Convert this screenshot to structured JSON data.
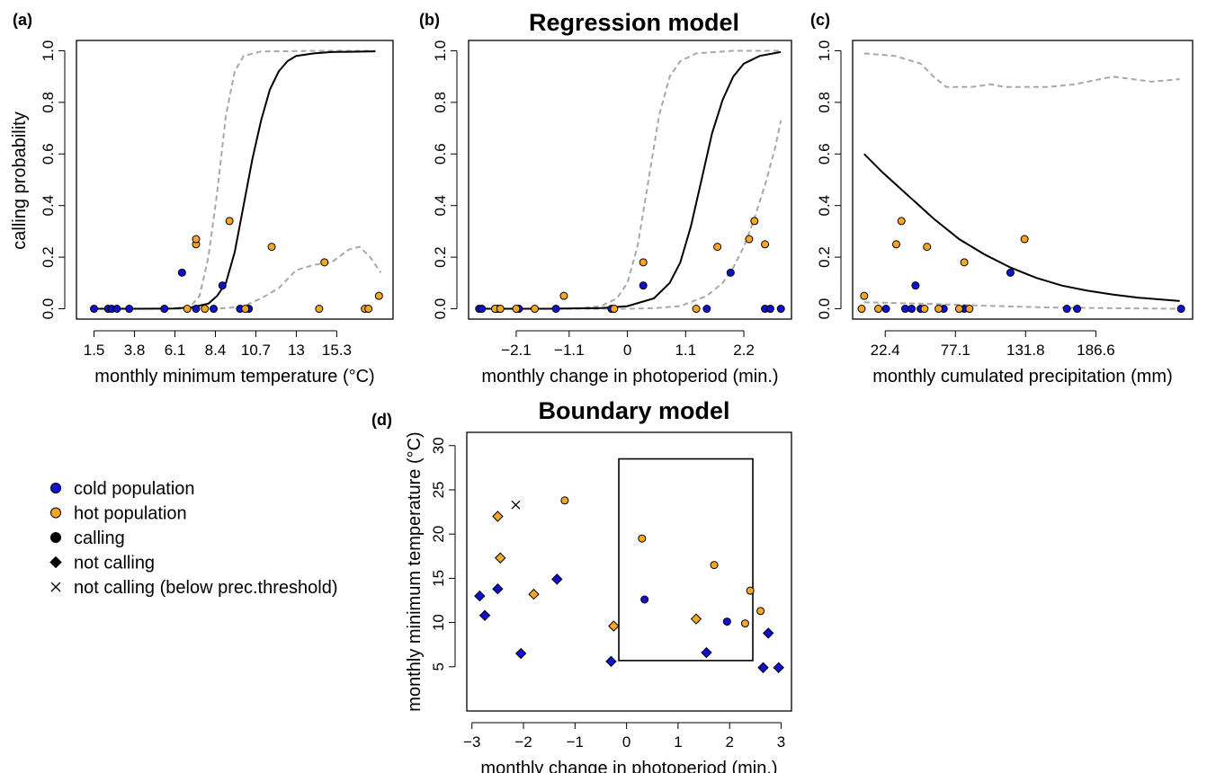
{
  "figure": {
    "titles": {
      "regression": "Regression model",
      "boundary": "Boundary model"
    },
    "panel_labels": {
      "a": "(a)",
      "b": "(b)",
      "c": "(c)",
      "d": "(d)"
    },
    "shared_ylabel": "calling probability"
  },
  "colors": {
    "cold": "#1010d0",
    "hot": "#f5a623",
    "fit": "#000000",
    "ci": "#a8a8a8"
  },
  "legend": {
    "items": [
      {
        "label": "cold population",
        "symbol": "circle",
        "color": "#1010d0"
      },
      {
        "label": "hot population",
        "symbol": "circle",
        "color": "#f5a623"
      },
      {
        "label": "calling",
        "symbol": "circle",
        "color": "#000000"
      },
      {
        "label": "not calling",
        "symbol": "diamond",
        "color": "#000000"
      },
      {
        "label": "not calling (below prec.threshold)",
        "symbol": "cross",
        "color": "#000000"
      }
    ]
  },
  "chart_data": [
    {
      "panel": "a",
      "type": "scatter",
      "xlabel": "monthly minimum temperature (°C)",
      "ylabel": "calling probability",
      "xlim": [
        0.5,
        18.5
      ],
      "ylim": [
        -0.04,
        1.04
      ],
      "xticks": [
        1.5,
        3.8,
        6.1,
        8.4,
        10.7,
        13,
        15.3
      ],
      "xtick_labels": [
        "1.5",
        "3.8",
        "6.1",
        "8.4",
        "10.7",
        "13",
        "15.3"
      ],
      "yticks": [
        0,
        0.2,
        0.4,
        0.6,
        0.8,
        1
      ],
      "ytick_labels": [
        "0.0",
        "0.2",
        "0.4",
        "0.6",
        "0.8",
        "1.0"
      ],
      "points": [
        {
          "x": 1.5,
          "y": 0,
          "group": "cold"
        },
        {
          "x": 2.3,
          "y": 0,
          "group": "cold"
        },
        {
          "x": 2.5,
          "y": 0,
          "group": "cold"
        },
        {
          "x": 2.8,
          "y": 0,
          "group": "cold"
        },
        {
          "x": 3.5,
          "y": 0,
          "group": "cold"
        },
        {
          "x": 5.5,
          "y": 0,
          "group": "cold"
        },
        {
          "x": 6.5,
          "y": 0.14,
          "group": "cold"
        },
        {
          "x": 7.3,
          "y": 0,
          "group": "cold"
        },
        {
          "x": 8.3,
          "y": 0,
          "group": "cold"
        },
        {
          "x": 8.8,
          "y": 0.09,
          "group": "cold"
        },
        {
          "x": 9.8,
          "y": 0,
          "group": "cold"
        },
        {
          "x": 10.3,
          "y": 0,
          "group": "cold"
        },
        {
          "x": 6.8,
          "y": 0,
          "group": "hot"
        },
        {
          "x": 7.8,
          "y": 0,
          "group": "hot"
        },
        {
          "x": 7.3,
          "y": 0.25,
          "group": "hot"
        },
        {
          "x": 7.3,
          "y": 0.27,
          "group": "hot"
        },
        {
          "x": 9.2,
          "y": 0.34,
          "group": "hot"
        },
        {
          "x": 10.1,
          "y": 0,
          "group": "hot"
        },
        {
          "x": 11.6,
          "y": 0.24,
          "group": "hot"
        },
        {
          "x": 14.3,
          "y": 0,
          "group": "hot"
        },
        {
          "x": 14.6,
          "y": 0.18,
          "group": "hot"
        },
        {
          "x": 16.9,
          "y": 0,
          "group": "hot"
        },
        {
          "x": 17.1,
          "y": 0,
          "group": "hot"
        },
        {
          "x": 17.7,
          "y": 0.05,
          "group": "hot"
        }
      ],
      "fit": [
        [
          1.5,
          0
        ],
        [
          4,
          0
        ],
        [
          6,
          0.001
        ],
        [
          7,
          0.005
        ],
        [
          8,
          0.02
        ],
        [
          8.5,
          0.05
        ],
        [
          9,
          0.1
        ],
        [
          9.5,
          0.22
        ],
        [
          10,
          0.4
        ],
        [
          10.5,
          0.58
        ],
        [
          11,
          0.73
        ],
        [
          11.5,
          0.85
        ],
        [
          12,
          0.92
        ],
        [
          12.5,
          0.96
        ],
        [
          13,
          0.98
        ],
        [
          14,
          0.99
        ],
        [
          15,
          0.995
        ],
        [
          17.5,
          0.998
        ]
      ],
      "ci_upper": [
        [
          1.5,
          0
        ],
        [
          6,
          0
        ],
        [
          7,
          0.01
        ],
        [
          7.5,
          0.05
        ],
        [
          8,
          0.2
        ],
        [
          8.5,
          0.45
        ],
        [
          9,
          0.75
        ],
        [
          9.5,
          0.92
        ],
        [
          10,
          0.98
        ],
        [
          11,
          0.997
        ],
        [
          14,
          1
        ],
        [
          17.5,
          1
        ]
      ],
      "ci_lower": [
        [
          1.5,
          0
        ],
        [
          8,
          0
        ],
        [
          9,
          0.002
        ],
        [
          10,
          0.01
        ],
        [
          11,
          0.04
        ],
        [
          12,
          0.08
        ],
        [
          13,
          0.15
        ],
        [
          14,
          0.17
        ],
        [
          15,
          0.18
        ],
        [
          16,
          0.23
        ],
        [
          16.6,
          0.24
        ],
        [
          17.2,
          0.2
        ],
        [
          17.8,
          0.14
        ]
      ]
    },
    {
      "panel": "b",
      "type": "scatter",
      "xlabel": "monthly change in photoperiod (min.)",
      "xlim": [
        -3.0,
        3.1
      ],
      "ylim": [
        -0.04,
        1.04
      ],
      "xticks": [
        -2.1,
        -1.1,
        0,
        1.1,
        2.2
      ],
      "xtick_labels": [
        "−2.1",
        "−1.1",
        "0",
        "1.1",
        "2.2"
      ],
      "yticks": [
        0,
        0.2,
        0.4,
        0.6,
        0.8,
        1
      ],
      "ytick_labels": [
        "0.0",
        "0.2",
        "0.4",
        "0.6",
        "0.8",
        "1.0"
      ],
      "points": [
        {
          "x": -2.8,
          "y": 0,
          "group": "cold"
        },
        {
          "x": -2.75,
          "y": 0,
          "group": "cold"
        },
        {
          "x": -2.45,
          "y": 0,
          "group": "cold"
        },
        {
          "x": -2.05,
          "y": 0,
          "group": "cold"
        },
        {
          "x": -1.35,
          "y": 0,
          "group": "cold"
        },
        {
          "x": -0.3,
          "y": 0,
          "group": "cold"
        },
        {
          "x": 0.3,
          "y": 0.09,
          "group": "cold"
        },
        {
          "x": 1.5,
          "y": 0,
          "group": "cold"
        },
        {
          "x": 1.95,
          "y": 0.14,
          "group": "cold"
        },
        {
          "x": 2.6,
          "y": 0,
          "group": "cold"
        },
        {
          "x": 2.7,
          "y": 0,
          "group": "cold"
        },
        {
          "x": 2.9,
          "y": 0,
          "group": "cold"
        },
        {
          "x": -2.5,
          "y": 0,
          "group": "hot"
        },
        {
          "x": -2.4,
          "y": 0,
          "group": "hot"
        },
        {
          "x": -2.1,
          "y": 0,
          "group": "hot"
        },
        {
          "x": -1.75,
          "y": 0,
          "group": "hot"
        },
        {
          "x": -1.2,
          "y": 0.05,
          "group": "hot"
        },
        {
          "x": -0.25,
          "y": 0,
          "group": "hot"
        },
        {
          "x": 0.3,
          "y": 0.18,
          "group": "hot"
        },
        {
          "x": 1.3,
          "y": 0,
          "group": "hot"
        },
        {
          "x": 1.7,
          "y": 0.24,
          "group": "hot"
        },
        {
          "x": 2.3,
          "y": 0.27,
          "group": "hot"
        },
        {
          "x": 2.4,
          "y": 0.34,
          "group": "hot"
        },
        {
          "x": 2.6,
          "y": 0.25,
          "group": "hot"
        }
      ],
      "fit": [
        [
          -2.85,
          0
        ],
        [
          -1.5,
          0
        ],
        [
          -0.5,
          0.003
        ],
        [
          0,
          0.01
        ],
        [
          0.5,
          0.04
        ],
        [
          0.8,
          0.1
        ],
        [
          1.0,
          0.18
        ],
        [
          1.2,
          0.32
        ],
        [
          1.4,
          0.5
        ],
        [
          1.6,
          0.68
        ],
        [
          1.8,
          0.81
        ],
        [
          2.0,
          0.9
        ],
        [
          2.2,
          0.95
        ],
        [
          2.5,
          0.98
        ],
        [
          2.9,
          0.995
        ]
      ],
      "ci_upper": [
        [
          -2.85,
          0
        ],
        [
          -1,
          0
        ],
        [
          -0.5,
          0.01
        ],
        [
          -0.2,
          0.04
        ],
        [
          0,
          0.1
        ],
        [
          0.2,
          0.25
        ],
        [
          0.4,
          0.5
        ],
        [
          0.6,
          0.75
        ],
        [
          0.8,
          0.9
        ],
        [
          1.0,
          0.96
        ],
        [
          1.3,
          0.99
        ],
        [
          2,
          1
        ],
        [
          2.9,
          1
        ]
      ],
      "ci_lower": [
        [
          -2.85,
          0
        ],
        [
          0,
          0
        ],
        [
          0.5,
          0.002
        ],
        [
          1.0,
          0.01
        ],
        [
          1.5,
          0.05
        ],
        [
          1.8,
          0.1
        ],
        [
          2.0,
          0.16
        ],
        [
          2.2,
          0.24
        ],
        [
          2.4,
          0.35
        ],
        [
          2.6,
          0.48
        ],
        [
          2.8,
          0.63
        ],
        [
          2.9,
          0.73
        ]
      ]
    },
    {
      "panel": "c",
      "type": "scatter",
      "xlabel": "monthly cumulated precipitation (mm)",
      "xlim": [
        -3,
        262
      ],
      "ylim": [
        -0.04,
        1.04
      ],
      "xticks": [
        22.4,
        77.1,
        131.8,
        186.6
      ],
      "xtick_labels": [
        "22.4",
        "77.1",
        "131.8",
        "186.6"
      ],
      "yticks": [
        0,
        0.2,
        0.4,
        0.6,
        0.8,
        1
      ],
      "ytick_labels": [
        "0.0",
        "0.2",
        "0.4",
        "0.6",
        "0.8",
        "1.0"
      ],
      "points": [
        {
          "x": 23,
          "y": 0,
          "group": "cold"
        },
        {
          "x": 38,
          "y": 0,
          "group": "cold"
        },
        {
          "x": 43,
          "y": 0,
          "group": "cold"
        },
        {
          "x": 46,
          "y": 0.09,
          "group": "cold"
        },
        {
          "x": 50,
          "y": 0,
          "group": "cold"
        },
        {
          "x": 68,
          "y": 0,
          "group": "cold"
        },
        {
          "x": 84,
          "y": 0,
          "group": "cold"
        },
        {
          "x": 120,
          "y": 0.14,
          "group": "cold"
        },
        {
          "x": 164,
          "y": 0,
          "group": "cold"
        },
        {
          "x": 172,
          "y": 0,
          "group": "cold"
        },
        {
          "x": 253,
          "y": 0,
          "group": "cold"
        },
        {
          "x": 4,
          "y": 0,
          "group": "hot"
        },
        {
          "x": 6,
          "y": 0.05,
          "group": "hot"
        },
        {
          "x": 17,
          "y": 0,
          "group": "hot"
        },
        {
          "x": 31,
          "y": 0.25,
          "group": "hot"
        },
        {
          "x": 35,
          "y": 0.34,
          "group": "hot"
        },
        {
          "x": 53,
          "y": 0,
          "group": "hot"
        },
        {
          "x": 55,
          "y": 0.24,
          "group": "hot"
        },
        {
          "x": 64,
          "y": 0,
          "group": "hot"
        },
        {
          "x": 80,
          "y": 0,
          "group": "hot"
        },
        {
          "x": 84,
          "y": 0.18,
          "group": "hot"
        },
        {
          "x": 88,
          "y": 0,
          "group": "hot"
        },
        {
          "x": 131,
          "y": 0.27,
          "group": "hot"
        }
      ],
      "fit": [
        [
          6,
          0.6
        ],
        [
          20,
          0.53
        ],
        [
          40,
          0.44
        ],
        [
          60,
          0.35
        ],
        [
          80,
          0.27
        ],
        [
          100,
          0.21
        ],
        [
          120,
          0.16
        ],
        [
          140,
          0.12
        ],
        [
          160,
          0.09
        ],
        [
          180,
          0.07
        ],
        [
          200,
          0.055
        ],
        [
          220,
          0.043
        ],
        [
          240,
          0.035
        ],
        [
          252,
          0.03
        ]
      ],
      "ci_upper": [
        [
          6,
          0.99
        ],
        [
          30,
          0.98
        ],
        [
          50,
          0.95
        ],
        [
          60,
          0.9
        ],
        [
          70,
          0.86
        ],
        [
          90,
          0.86
        ],
        [
          105,
          0.87
        ],
        [
          115,
          0.86
        ],
        [
          150,
          0.86
        ],
        [
          170,
          0.87
        ],
        [
          200,
          0.9
        ],
        [
          230,
          0.88
        ],
        [
          252,
          0.89
        ]
      ],
      "ci_lower": [
        [
          6,
          0.025
        ],
        [
          50,
          0.02
        ],
        [
          100,
          0.012
        ],
        [
          150,
          0.005
        ],
        [
          200,
          0.002
        ],
        [
          252,
          0
        ]
      ]
    },
    {
      "panel": "d",
      "type": "scatter",
      "xlabel": "monthly change in photoperiod (min.)",
      "ylabel": "monthly minimum temperature (°C)",
      "xlim": [
        -3.1,
        3.2
      ],
      "ylim": [
        0,
        31.5
      ],
      "xticks": [
        -3,
        -2,
        -1,
        0,
        1,
        2,
        3
      ],
      "xtick_labels": [
        "−3",
        "−2",
        "−1",
        "0",
        "1",
        "2",
        "3"
      ],
      "yticks": [
        5,
        10,
        15,
        20,
        25,
        30
      ],
      "ytick_labels": [
        "5",
        "10",
        "15",
        "20",
        "25",
        "30"
      ],
      "boundary_box": {
        "x_min": -0.15,
        "x_max": 2.45,
        "y_min": 5.7,
        "y_max": 28.5
      },
      "points": [
        {
          "x": -2.85,
          "y": 13,
          "group": "cold",
          "marker": "diamond"
        },
        {
          "x": -2.75,
          "y": 10.8,
          "group": "cold",
          "marker": "diamond"
        },
        {
          "x": -2.5,
          "y": 13.8,
          "group": "cold",
          "marker": "diamond"
        },
        {
          "x": -2.05,
          "y": 6.5,
          "group": "cold",
          "marker": "diamond"
        },
        {
          "x": -1.35,
          "y": 14.9,
          "group": "cold",
          "marker": "diamond"
        },
        {
          "x": -0.3,
          "y": 5.6,
          "group": "cold",
          "marker": "diamond"
        },
        {
          "x": 1.55,
          "y": 6.6,
          "group": "cold",
          "marker": "diamond"
        },
        {
          "x": 2.65,
          "y": 4.9,
          "group": "cold",
          "marker": "diamond"
        },
        {
          "x": 2.75,
          "y": 8.8,
          "group": "cold",
          "marker": "diamond"
        },
        {
          "x": 2.95,
          "y": 4.9,
          "group": "cold",
          "marker": "diamond"
        },
        {
          "x": 0.35,
          "y": 12.6,
          "group": "cold",
          "marker": "circle"
        },
        {
          "x": 1.95,
          "y": 10.1,
          "group": "cold",
          "marker": "circle"
        },
        {
          "x": -2.5,
          "y": 22,
          "group": "hot",
          "marker": "diamond"
        },
        {
          "x": -2.45,
          "y": 17.3,
          "group": "hot",
          "marker": "diamond"
        },
        {
          "x": -1.8,
          "y": 13.2,
          "group": "hot",
          "marker": "diamond"
        },
        {
          "x": -0.25,
          "y": 9.6,
          "group": "hot",
          "marker": "diamond"
        },
        {
          "x": 1.35,
          "y": 10.4,
          "group": "hot",
          "marker": "diamond"
        },
        {
          "x": 0.3,
          "y": 19.5,
          "group": "hot",
          "marker": "circle"
        },
        {
          "x": -1.2,
          "y": 23.8,
          "group": "hot",
          "marker": "circle"
        },
        {
          "x": 1.7,
          "y": 16.5,
          "group": "hot",
          "marker": "circle"
        },
        {
          "x": 2.3,
          "y": 9.9,
          "group": "hot",
          "marker": "circle"
        },
        {
          "x": 2.4,
          "y": 13.6,
          "group": "hot",
          "marker": "circle"
        },
        {
          "x": 2.6,
          "y": 11.3,
          "group": "hot",
          "marker": "circle"
        },
        {
          "x": -2.15,
          "y": 23.3,
          "group": "none",
          "marker": "cross"
        }
      ]
    }
  ]
}
